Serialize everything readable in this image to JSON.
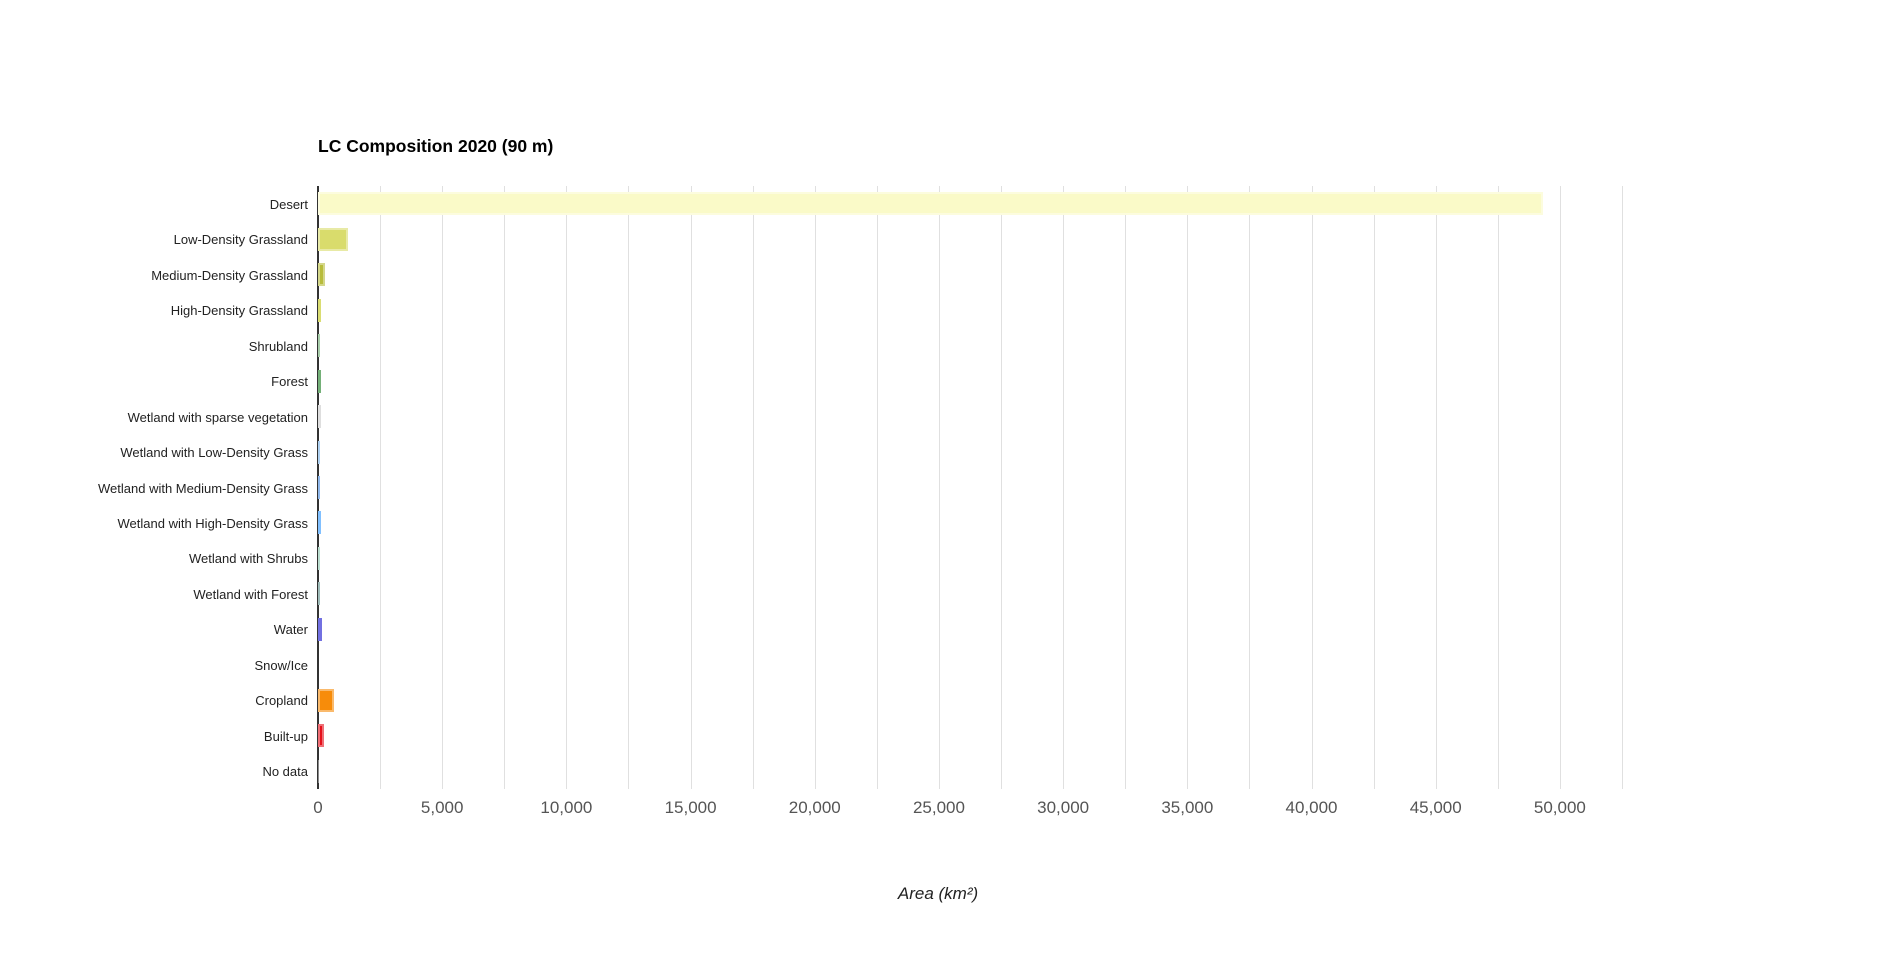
{
  "page": {
    "background": "#ffffff"
  },
  "chart_data": {
    "type": "bar",
    "orientation": "horizontal",
    "title": "LC Composition 2020 (90 m)",
    "xlabel": "Area (km²)",
    "ylabel": "",
    "xlim": [
      0,
      52500
    ],
    "minor_gridline_step": 2500,
    "grid": true,
    "x_ticks": [
      {
        "value": 0,
        "label": "0"
      },
      {
        "value": 5000,
        "label": "5,000"
      },
      {
        "value": 10000,
        "label": "10,000"
      },
      {
        "value": 15000,
        "label": "15,000"
      },
      {
        "value": 20000,
        "label": "20,000"
      },
      {
        "value": 25000,
        "label": "25,000"
      },
      {
        "value": 30000,
        "label": "30,000"
      },
      {
        "value": 35000,
        "label": "35,000"
      },
      {
        "value": 40000,
        "label": "40,000"
      },
      {
        "value": 45000,
        "label": "45,000"
      },
      {
        "value": 50000,
        "label": "50,000"
      }
    ],
    "categories": [
      "Desert",
      "Low-Density Grassland",
      "Medium-Density Grassland",
      "High-Density Grassland",
      "Shrubland",
      "Forest",
      "Wetland with sparse vegetation",
      "Wetland with Low-Density Grass",
      "Wetland with Medium-Density Grass",
      "Wetland with High-Density Grass",
      "Wetland with Shrubs",
      "Wetland with Forest",
      "Water",
      "Snow/Ice",
      "Cropland",
      "Built-up",
      "No data"
    ],
    "values": [
      49300,
      1200,
      280,
      140,
      90,
      110,
      120,
      100,
      80,
      120,
      100,
      80,
      170,
      0,
      640,
      230,
      30
    ],
    "bar_colors": [
      "#FAFAC8",
      "#D9DC6C",
      "#B8BC3C",
      "#C2C614",
      "#6EAC72",
      "#187C1E",
      "#C9C9C9",
      "#7AB2E8",
      "#4689DE",
      "#2E97FF",
      "#8EC9B1",
      "#60908B",
      "#1512CE",
      "#FFFFFF",
      "#F78C0A",
      "#E5101B",
      "#3C3C3C"
    ],
    "colors": {
      "axis": "#333333",
      "gridline": "#e0e0e0",
      "title_text": "#000000",
      "category_text": "#222222",
      "tick_text": "#555555"
    }
  }
}
